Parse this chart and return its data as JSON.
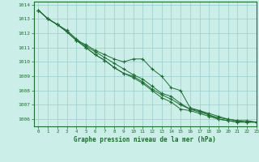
{
  "title": "Graphe pression niveau de la mer (hPa)",
  "background_color": "#cceee8",
  "grid_color": "#99cccc",
  "line_color": "#1a6e2e",
  "marker_color": "#1a6e2e",
  "xlim": [
    -0.5,
    23
  ],
  "ylim": [
    1005.5,
    1014.2
  ],
  "yticks": [
    1006,
    1007,
    1008,
    1009,
    1010,
    1011,
    1012,
    1013,
    1014
  ],
  "xticks": [
    0,
    1,
    2,
    3,
    4,
    5,
    6,
    7,
    8,
    9,
    10,
    11,
    12,
    13,
    14,
    15,
    16,
    17,
    18,
    19,
    20,
    21,
    22,
    23
  ],
  "series": [
    [
      1013.6,
      1013.0,
      1012.6,
      1012.1,
      1011.5,
      1011.2,
      1010.8,
      1010.5,
      1010.2,
      1010.0,
      1010.2,
      1010.2,
      1009.5,
      1009.0,
      1008.2,
      1008.0,
      1006.8,
      1006.6,
      1006.4,
      1006.2,
      1006.0,
      1005.9,
      1005.8,
      1005.8
    ],
    [
      1013.6,
      1013.0,
      1012.6,
      1012.1,
      1011.5,
      1011.0,
      1010.5,
      1010.1,
      1009.6,
      1009.2,
      1009.0,
      1008.6,
      1008.1,
      1007.7,
      1007.4,
      1007.0,
      1006.7,
      1006.5,
      1006.3,
      1006.0,
      1005.9,
      1005.8,
      1005.8,
      1005.8
    ],
    [
      1013.6,
      1013.0,
      1012.6,
      1012.1,
      1011.5,
      1011.0,
      1010.5,
      1010.1,
      1009.6,
      1009.2,
      1008.9,
      1008.5,
      1008.0,
      1007.5,
      1007.2,
      1006.7,
      1006.6,
      1006.4,
      1006.2,
      1006.0,
      1005.9,
      1005.8,
      1005.8,
      1005.8
    ],
    [
      1013.6,
      1013.0,
      1012.6,
      1012.2,
      1011.6,
      1011.1,
      1010.7,
      1010.3,
      1009.9,
      1009.5,
      1009.1,
      1008.8,
      1008.3,
      1007.8,
      1007.6,
      1007.1,
      1006.7,
      1006.6,
      1006.3,
      1006.1,
      1006.0,
      1005.9,
      1005.9,
      1005.8
    ]
  ]
}
